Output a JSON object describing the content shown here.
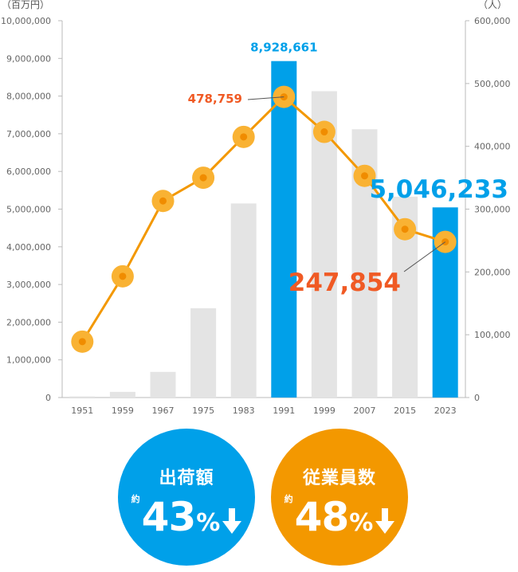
{
  "chart_data": {
    "type": "bar+line",
    "categories": [
      "1951",
      "1959",
      "1967",
      "1975",
      "1983",
      "1991",
      "1999",
      "2007",
      "2015",
      "2023"
    ],
    "series": [
      {
        "name": "出荷額",
        "kind": "bar",
        "axis": "left",
        "values": [
          30000,
          150000,
          680000,
          2370000,
          5150000,
          8928661,
          8130000,
          7120000,
          5330000,
          5046233
        ],
        "highlighted": [
          "1991",
          "2023"
        ]
      },
      {
        "name": "従業員数",
        "kind": "line",
        "axis": "right",
        "values": [
          89000,
          193000,
          313000,
          350000,
          415000,
          478759,
          423000,
          353000,
          268000,
          247854
        ]
      }
    ],
    "left_axis": {
      "unit": "（百万円）",
      "ylim": [
        0,
        10000000
      ],
      "ticks": [
        0,
        1000000,
        2000000,
        3000000,
        4000000,
        5000000,
        6000000,
        7000000,
        8000000,
        9000000,
        10000000
      ],
      "tick_labels": [
        "0",
        "1,000,000",
        "2,000,000",
        "3,000,000",
        "4,000,000",
        "5,000,000",
        "6,000,000",
        "7,000,000",
        "8,000,000",
        "9,000,000",
        "10,000,000"
      ]
    },
    "right_axis": {
      "unit": "（人）",
      "ylim": [
        0,
        600000
      ],
      "ticks": [
        0,
        100000,
        200000,
        300000,
        400000,
        500000,
        600000
      ],
      "tick_labels": [
        "0",
        "100,000",
        "200,000",
        "300,000",
        "400,000",
        "500,000",
        "600,000"
      ]
    },
    "annotations": [
      {
        "text": "8,928,661",
        "series": "出荷額",
        "category": "1991"
      },
      {
        "text": "5,046,233",
        "series": "出荷額",
        "category": "2023"
      },
      {
        "text": "478,759",
        "series": "従業員数",
        "category": "1991"
      },
      {
        "text": "247,854",
        "series": "従業員数",
        "category": "2023"
      }
    ],
    "colors": {
      "bar": "#e4e4e4",
      "bar_highlight": "#00a0e9",
      "line": "#f39800",
      "marker": "#f9b233",
      "marker_center": "#f08c00",
      "line_label": "#f05a24",
      "axis_text": "#666666"
    }
  },
  "badges": [
    {
      "title": "出荷額",
      "approx": "約",
      "percent": "43",
      "sign": "%",
      "icon": "down-arrow-icon",
      "color": "#00a0e9"
    },
    {
      "title": "従業員数",
      "approx": "約",
      "percent": "48",
      "sign": "%",
      "icon": "down-arrow-icon",
      "color": "#f39800"
    }
  ]
}
